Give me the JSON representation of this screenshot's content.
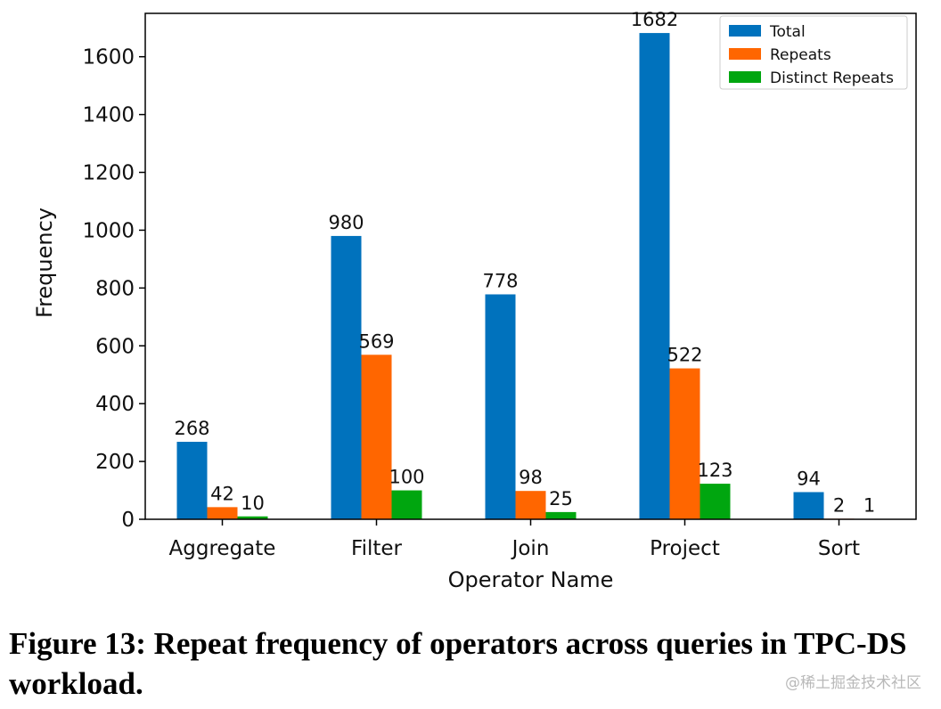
{
  "chart_data": {
    "type": "bar",
    "categories": [
      "Aggregate",
      "Filter",
      "Join",
      "Project",
      "Sort"
    ],
    "series": [
      {
        "name": "Total",
        "values": [
          268,
          980,
          778,
          1682,
          94
        ],
        "color": "#0072bd"
      },
      {
        "name": "Repeats",
        "values": [
          42,
          569,
          98,
          522,
          2
        ],
        "color": "#ff6600"
      },
      {
        "name": "Distinct Repeats",
        "values": [
          10,
          100,
          25,
          123,
          1
        ],
        "color": "#00a60f"
      }
    ],
    "xlabel": "Operator Name",
    "ylabel": "Frequency",
    "ylim": [
      0,
      1750
    ],
    "yticks": [
      0,
      200,
      400,
      600,
      800,
      1000,
      1200,
      1400,
      1600
    ],
    "legend_position": "top-right",
    "grid": false
  },
  "caption": "Figure 13: Repeat frequency of operators across queries in TPC-DS workload.",
  "watermark": "@稀土掘金技术社区"
}
